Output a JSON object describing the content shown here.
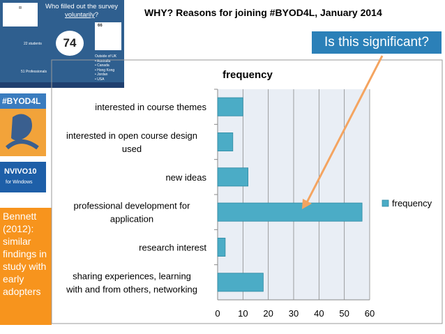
{
  "slide": {
    "title": "WHY? Reasons for joining #BYOD4L, January 2014",
    "callout": "Is this significant?",
    "bennett_note": "Bennett (2012): similar findings in study with early adopters"
  },
  "thumb_survey": {
    "title_line1": "Who filled out the survey",
    "title_line2": "voluntarily",
    "title_suffix": "?",
    "count": "74",
    "students": "22 students",
    "uk_count": "66",
    "outside_uk_heading": "Outside of UK",
    "outside_uk_list": [
      "• Australia",
      "• Canada",
      "• Hong Kong",
      "• Jordan",
      "• USA"
    ],
    "professionals": "51 Professionals"
  },
  "thumb_byod": {
    "label": "#BYOD4L"
  },
  "thumb_nvivo": {
    "label": "NVIVO10",
    "sub": "for Windows"
  },
  "colors": {
    "bar": "#4bacc6",
    "callout": "#2b80b8",
    "arrow": "#f4a460",
    "bennett": "#f7941d"
  },
  "chart_data": {
    "type": "bar",
    "orientation": "horizontal",
    "title": "frequency",
    "categories": [
      "interested in course themes",
      "interested in open course design used",
      "new ideas",
      "professional development for application",
      "research interest",
      "sharing experiences, learning with and from others, networking"
    ],
    "series": [
      {
        "name": "frequency",
        "values": [
          10,
          6,
          12,
          57,
          3,
          18
        ]
      }
    ],
    "xlim": [
      0,
      60
    ],
    "xticks": [
      "0",
      "10",
      "20",
      "30",
      "40",
      "50",
      "60"
    ],
    "grid": true,
    "legend": "right"
  }
}
